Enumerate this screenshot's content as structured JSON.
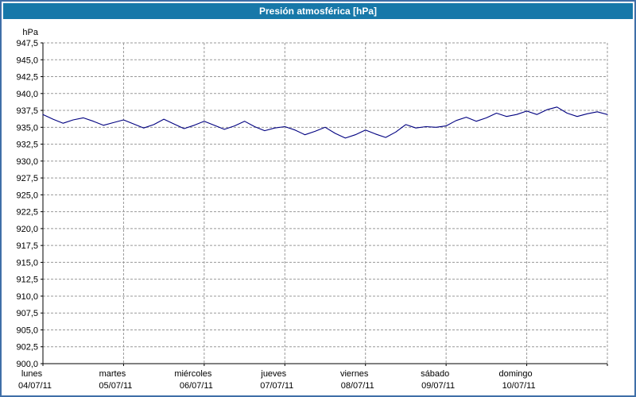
{
  "window": {
    "title": "Presión atmosférica [hPa]"
  },
  "colors": {
    "title_bar": "#1778a9",
    "title_text": "#ffffff",
    "border": "#3f6fa8",
    "grid": "#999999",
    "axis": "#000000",
    "line": "#000080",
    "plot_bg": "#ffffff"
  },
  "chart_data": {
    "type": "line",
    "title": "Presión atmosférica [hPa]",
    "ylabel": "hPa",
    "ylim": [
      900.0,
      947.5
    ],
    "ytick_step": 2.5,
    "ytick_labels": [
      "947,5",
      "945,0",
      "942,5",
      "940,0",
      "937,5",
      "935,0",
      "932,5",
      "930,0",
      "927,5",
      "925,0",
      "922,5",
      "920,0",
      "917,5",
      "915,0",
      "912,5",
      "910,0",
      "907,5",
      "905,0",
      "902,5",
      "900,0"
    ],
    "grid": "dashed",
    "legend": "none",
    "x_hours_total": 168,
    "x_days": [
      {
        "name": "lunes",
        "date": "04/07/11"
      },
      {
        "name": "martes",
        "date": "05/07/11"
      },
      {
        "name": "miércoles",
        "date": "06/07/11"
      },
      {
        "name": "jueves",
        "date": "07/07/11"
      },
      {
        "name": "viernes",
        "date": "08/07/11"
      },
      {
        "name": "sábado",
        "date": "09/07/11"
      },
      {
        "name": "domingo",
        "date": "10/07/11"
      }
    ],
    "series": [
      {
        "name": "Presión atmosférica",
        "color": "#000080",
        "x_hours": [
          0,
          3,
          6,
          9,
          12,
          15,
          18,
          21,
          24,
          27,
          30,
          33,
          36,
          39,
          42,
          45,
          48,
          51,
          54,
          57,
          60,
          63,
          66,
          69,
          72,
          75,
          78,
          81,
          84,
          87,
          90,
          93,
          96,
          99,
          102,
          105,
          108,
          111,
          114,
          117,
          120,
          123,
          126,
          129,
          132,
          135,
          138,
          141,
          144,
          147,
          150,
          153,
          156,
          159,
          162,
          165,
          168
        ],
        "values": [
          936.9,
          936.2,
          935.6,
          936.1,
          936.4,
          935.9,
          935.3,
          935.7,
          936.1,
          935.5,
          934.9,
          935.4,
          936.2,
          935.5,
          934.8,
          935.3,
          935.9,
          935.3,
          934.7,
          935.2,
          935.9,
          935.1,
          934.5,
          934.9,
          935.1,
          934.6,
          933.9,
          934.4,
          935.0,
          934.1,
          933.4,
          933.9,
          934.6,
          934.0,
          933.5,
          934.3,
          935.4,
          934.9,
          935.1,
          935.0,
          935.2,
          936.0,
          936.5,
          935.9,
          936.4,
          937.1,
          936.6,
          936.9,
          937.4,
          936.9,
          937.6,
          938.0,
          937.1,
          936.6,
          937.0,
          937.3,
          936.9
        ]
      }
    ]
  }
}
